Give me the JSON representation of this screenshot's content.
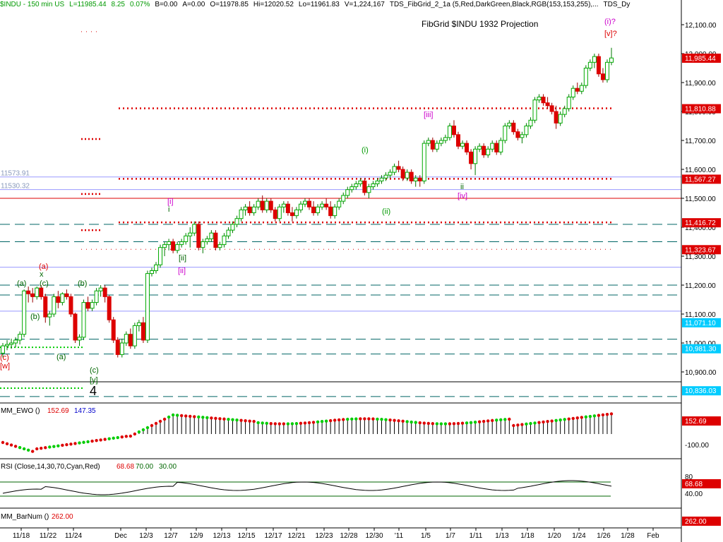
{
  "header": {
    "symbol": "$INDU - 150 min  US",
    "last": "L=11985.44",
    "change": "8.25",
    "pct": "0.07%",
    "bid": "B=0.00",
    "ask": "A=0.00",
    "open": "O=11978.85",
    "high": "Hi=12020.52",
    "low": "Lo=11961.83",
    "volume": "V=1,224,167",
    "study": "TDS_FibGrid_2_1a (5,Red,DarkGreen,Black,RGB(153,153,255),...",
    "study2": "TDS_Dy"
  },
  "chart_title": "FibGrid $INDU 1932 Projection",
  "colors": {
    "up": "#00cc00",
    "down": "#dd0000",
    "fib_red": "#ff0000",
    "fib_green": "#00cc00",
    "teal": "#006666",
    "lightblue": "#9999ff",
    "magenta": "#cc00cc",
    "darkgreen": "#006600"
  },
  "chart_data": {
    "type": "candlestick",
    "price_axis": {
      "min": 10780,
      "max": 12150,
      "ticks": [
        "12,100.00",
        "12,000.00",
        "11,900.00",
        "11,800.00",
        "11,700.00",
        "11,600.00",
        "11,500.00",
        "11,400.00",
        "11,300.00",
        "11,200.00",
        "11,100.00",
        "11,000.00",
        "10,900.00"
      ]
    },
    "tick_values": [
      12100,
      12000,
      11900,
      11800,
      11700,
      11600,
      11500,
      11400,
      11300,
      11200,
      11100,
      11000,
      10900
    ],
    "x_labels": [
      "11/18",
      "11/22",
      "11/24",
      "Dec",
      "12/3",
      "12/7",
      "12/9",
      "12/13",
      "12/15",
      "12/17",
      "12/21",
      "12/23",
      "12/28",
      "12/30",
      "'11",
      "1/5",
      "1/7",
      "1/11",
      "1/13",
      "1/18",
      "1/20",
      "1/24",
      "1/26",
      "1/28",
      "Feb"
    ],
    "price_tags": [
      {
        "text": "11,985.44",
        "value": 11985.44,
        "color": "#dd0000"
      },
      {
        "text": "11,810.88",
        "value": 11810.88,
        "color": "#dd0000"
      },
      {
        "text": "11,567.27",
        "value": 11567.27,
        "color": "#dd0000"
      },
      {
        "text": "11,416.72",
        "value": 11416.72,
        "color": "#dd0000"
      },
      {
        "text": "11,323.67",
        "value": 11323.67,
        "color": "#dd0000"
      },
      {
        "text": "11,071.10",
        "value": 11071.1,
        "color": "#00ccff"
      },
      {
        "text": "10,981.30",
        "value": 10981.3,
        "color": "#00ccff"
      },
      {
        "text": "10,836.03",
        "value": 10836.03,
        "color": "#00ccff"
      }
    ],
    "level_labels": [
      {
        "text": "11573.91",
        "value": 11573.91
      },
      {
        "text": "11530.32",
        "value": 11530.32
      }
    ],
    "levels": [
      {
        "value": 11810.88,
        "style": "reddot",
        "x0": 168
      },
      {
        "value": 11567.27,
        "style": "reddot",
        "x0": 168
      },
      {
        "value": 11416.72,
        "style": "reddot",
        "x0": 168
      },
      {
        "value": 11573.91,
        "style": "lightblue",
        "x0": 0
      },
      {
        "value": 11530.32,
        "style": "lightblue",
        "x0": 0
      },
      {
        "value": 11500,
        "style": "red",
        "x0": 0
      },
      {
        "value": 11410,
        "style": "tealdash",
        "x0": 0
      },
      {
        "value": 11350,
        "style": "tealdash",
        "x0": 0
      },
      {
        "value": 11323.67,
        "style": "pinkdot",
        "x0": 115
      },
      {
        "value": 11262,
        "style": "lightblue",
        "x0": 0
      },
      {
        "value": 11200,
        "style": "tealdash",
        "x0": 0
      },
      {
        "value": 11166,
        "style": "tealdash",
        "x0": 0
      },
      {
        "value": 11110,
        "style": "lightblue",
        "x0": 0
      },
      {
        "value": 11013,
        "style": "tealdash",
        "x0": 0
      },
      {
        "value": 10962,
        "style": "tealdash",
        "x0": 0
      },
      {
        "value": 10866,
        "style": "black",
        "x0": 0
      },
      {
        "value": 10815,
        "style": "tealdash",
        "x0": 0
      },
      {
        "value": 12076,
        "style": "pinkdot_short",
        "x0": 115
      },
      {
        "value": 11705,
        "style": "reddot_short",
        "x0": 115
      },
      {
        "value": 11515,
        "style": "reddot_short",
        "x0": 115
      },
      {
        "value": 11390,
        "style": "reddot_short",
        "x0": 115
      },
      {
        "value": 10985,
        "style": "greendot_short",
        "x0": 0
      },
      {
        "value": 10844,
        "style": "greendot_short",
        "x0": 0
      }
    ],
    "candles": [
      [
        10965,
        11000,
        10950,
        10990
      ],
      [
        10990,
        11010,
        10975,
        10995
      ],
      [
        10995,
        11015,
        10980,
        11000
      ],
      [
        11000,
        11020,
        10985,
        11010
      ],
      [
        11010,
        11040,
        10995,
        11030
      ],
      [
        11030,
        11185,
        11020,
        11180
      ],
      [
        11180,
        11195,
        11140,
        11170
      ],
      [
        11170,
        11190,
        11140,
        11160
      ],
      [
        11160,
        11195,
        11150,
        11190
      ],
      [
        11190,
        11200,
        11150,
        11160
      ],
      [
        11160,
        11170,
        11070,
        11090
      ],
      [
        11090,
        11110,
        11060,
        11100
      ],
      [
        11100,
        11170,
        11090,
        11160
      ],
      [
        11160,
        11180,
        11120,
        11140
      ],
      [
        11140,
        11175,
        11130,
        11170
      ],
      [
        11170,
        11185,
        11150,
        11160
      ],
      [
        11160,
        11170,
        11090,
        11100
      ],
      [
        11100,
        11105,
        11000,
        11010
      ],
      [
        11010,
        11030,
        10990,
        11020
      ],
      [
        11020,
        11150,
        11010,
        11140
      ],
      [
        11140,
        11160,
        11110,
        11120
      ],
      [
        11120,
        11150,
        11110,
        11140
      ],
      [
        11140,
        11190,
        11130,
        11180
      ],
      [
        11180,
        11200,
        11160,
        11190
      ],
      [
        11190,
        11200,
        11140,
        11160
      ],
      [
        11160,
        11165,
        11070,
        11080
      ],
      [
        11080,
        11090,
        11000,
        11010
      ],
      [
        11010,
        11020,
        10950,
        10960
      ],
      [
        10960,
        11015,
        10950,
        11000
      ],
      [
        11000,
        11040,
        10990,
        11030
      ],
      [
        11030,
        11050,
        10980,
        10990
      ],
      [
        10990,
        11070,
        10980,
        11060
      ],
      [
        11060,
        11080,
        11040,
        11070
      ],
      [
        11070,
        11090,
        11000,
        11010
      ],
      [
        11010,
        11250,
        11000,
        11240
      ],
      [
        11240,
        11260,
        11230,
        11250
      ],
      [
        11250,
        11280,
        11240,
        11270
      ],
      [
        11270,
        11340,
        11260,
        11330
      ],
      [
        11330,
        11350,
        11300,
        11340
      ],
      [
        11340,
        11360,
        11320,
        11350
      ],
      [
        11350,
        11360,
        11310,
        11320
      ],
      [
        11320,
        11350,
        11310,
        11340
      ],
      [
        11340,
        11360,
        11330,
        11350
      ],
      [
        11350,
        11380,
        11340,
        11370
      ],
      [
        11370,
        11400,
        11330,
        11380
      ],
      [
        11380,
        11420,
        11370,
        11410
      ],
      [
        11410,
        11420,
        11320,
        11330
      ],
      [
        11330,
        11360,
        11310,
        11350
      ],
      [
        11350,
        11370,
        11340,
        11360
      ],
      [
        11360,
        11390,
        11350,
        11380
      ],
      [
        11380,
        11390,
        11320,
        11330
      ],
      [
        11330,
        11350,
        11320,
        11340
      ],
      [
        11340,
        11380,
        11330,
        11370
      ],
      [
        11370,
        11400,
        11360,
        11390
      ],
      [
        11390,
        11420,
        11380,
        11410
      ],
      [
        11410,
        11440,
        11400,
        11430
      ],
      [
        11430,
        11470,
        11420,
        11460
      ],
      [
        11460,
        11480,
        11440,
        11470
      ],
      [
        11470,
        11490,
        11440,
        11450
      ],
      [
        11450,
        11480,
        11440,
        11470
      ],
      [
        11470,
        11500,
        11460,
        11490
      ],
      [
        11490,
        11510,
        11450,
        11460
      ],
      [
        11460,
        11500,
        11450,
        11490
      ],
      [
        11490,
        11500,
        11450,
        11460
      ],
      [
        11460,
        11470,
        11420,
        11430
      ],
      [
        11430,
        11480,
        11420,
        11470
      ],
      [
        11470,
        11490,
        11450,
        11480
      ],
      [
        11480,
        11490,
        11440,
        11450
      ],
      [
        11450,
        11470,
        11420,
        11440
      ],
      [
        11440,
        11470,
        11430,
        11460
      ],
      [
        11460,
        11490,
        11450,
        11480
      ],
      [
        11480,
        11500,
        11470,
        11490
      ],
      [
        11490,
        11500,
        11460,
        11470
      ],
      [
        11470,
        11490,
        11440,
        11450
      ],
      [
        11450,
        11480,
        11440,
        11470
      ],
      [
        11470,
        11490,
        11460,
        11480
      ],
      [
        11480,
        11500,
        11460,
        11470
      ],
      [
        11470,
        11490,
        11430,
        11440
      ],
      [
        11440,
        11480,
        11430,
        11470
      ],
      [
        11470,
        11500,
        11460,
        11490
      ],
      [
        11490,
        11520,
        11480,
        11510
      ],
      [
        11510,
        11540,
        11500,
        11530
      ],
      [
        11530,
        11550,
        11520,
        11540
      ],
      [
        11540,
        11560,
        11530,
        11550
      ],
      [
        11550,
        11570,
        11540,
        11560
      ],
      [
        11560,
        11570,
        11510,
        11520
      ],
      [
        11520,
        11550,
        11500,
        11540
      ],
      [
        11540,
        11560,
        11530,
        11550
      ],
      [
        11550,
        11570,
        11540,
        11560
      ],
      [
        11560,
        11580,
        11550,
        11570
      ],
      [
        11570,
        11590,
        11560,
        11580
      ],
      [
        11580,
        11600,
        11570,
        11590
      ],
      [
        11590,
        11620,
        11580,
        11610
      ],
      [
        11610,
        11630,
        11590,
        11600
      ],
      [
        11600,
        11610,
        11560,
        11570
      ],
      [
        11570,
        11600,
        11560,
        11590
      ],
      [
        11590,
        11600,
        11550,
        11560
      ],
      [
        11560,
        11580,
        11540,
        11570
      ],
      [
        11570,
        11580,
        11540,
        11560
      ],
      [
        11560,
        11700,
        11550,
        11690
      ],
      [
        11690,
        11710,
        11680,
        11700
      ],
      [
        11700,
        11710,
        11660,
        11670
      ],
      [
        11670,
        11700,
        11660,
        11690
      ],
      [
        11690,
        11710,
        11680,
        11700
      ],
      [
        11700,
        11720,
        11690,
        11710
      ],
      [
        11710,
        11760,
        11700,
        11750
      ],
      [
        11750,
        11770,
        11710,
        11720
      ],
      [
        11720,
        11730,
        11670,
        11680
      ],
      [
        11680,
        11700,
        11670,
        11690
      ],
      [
        11690,
        11700,
        11650,
        11660
      ],
      [
        11660,
        11670,
        11600,
        11620
      ],
      [
        11620,
        11680,
        11580,
        11670
      ],
      [
        11670,
        11690,
        11660,
        11680
      ],
      [
        11680,
        11690,
        11640,
        11650
      ],
      [
        11650,
        11680,
        11640,
        11670
      ],
      [
        11670,
        11700,
        11660,
        11690
      ],
      [
        11690,
        11700,
        11650,
        11660
      ],
      [
        11660,
        11710,
        11650,
        11700
      ],
      [
        11700,
        11760,
        11690,
        11750
      ],
      [
        11750,
        11770,
        11740,
        11760
      ],
      [
        11760,
        11770,
        11720,
        11730
      ],
      [
        11730,
        11740,
        11700,
        11710
      ],
      [
        11710,
        11730,
        11690,
        11720
      ],
      [
        11720,
        11760,
        11710,
        11750
      ],
      [
        11750,
        11780,
        11740,
        11770
      ],
      [
        11770,
        11850,
        11760,
        11840
      ],
      [
        11840,
        11860,
        11830,
        11850
      ],
      [
        11850,
        11860,
        11820,
        11830
      ],
      [
        11830,
        11850,
        11810,
        11820
      ],
      [
        11820,
        11830,
        11790,
        11800
      ],
      [
        11800,
        11820,
        11740,
        11760
      ],
      [
        11760,
        11800,
        11750,
        11790
      ],
      [
        11790,
        11820,
        11780,
        11810
      ],
      [
        11810,
        11860,
        11800,
        11850
      ],
      [
        11850,
        11890,
        11840,
        11880
      ],
      [
        11880,
        11900,
        11860,
        11870
      ],
      [
        11870,
        11900,
        11860,
        11890
      ],
      [
        11890,
        11960,
        11880,
        11950
      ],
      [
        11950,
        11980,
        11940,
        11970
      ],
      [
        11970,
        12000,
        11950,
        11990
      ],
      [
        11990,
        12000,
        11920,
        11930
      ],
      [
        11930,
        11950,
        11900,
        11910
      ],
      [
        11910,
        11980,
        11900,
        11970
      ],
      [
        11970,
        12020,
        11960,
        11985
      ]
    ],
    "ewo": {
      "label": "MM_EWO ()",
      "value1": "152.69",
      "value2": "147.35",
      "tag": "152.69",
      "tick": "-100.00"
    },
    "rsi": {
      "label": "RSI (Close,14,30,70,Cyan,Red)",
      "value": "68.68",
      "upper": "70.00",
      "lower": "30.00",
      "tag": "68.68",
      "ticks": [
        "80",
        "40.00"
      ]
    },
    "barnum": {
      "label": "MM_BarNum ()",
      "value": "262.00",
      "tag": "262.00"
    },
    "wave_labels": [
      {
        "text": "(i)?",
        "color": "#cc00cc"
      },
      {
        "text": "[v]?",
        "color": "#dd0000"
      },
      {
        "text": "[iii]",
        "color": "#cc00cc"
      },
      {
        "text": "(i)",
        "color": "#009900"
      },
      {
        "text": "ii",
        "color": "#006600"
      },
      {
        "text": "[iv]",
        "color": "#cc00cc"
      },
      {
        "text": "(ii)",
        "color": "#009900"
      },
      {
        "text": "[i]",
        "color": "#cc00cc"
      },
      {
        "text": "i",
        "color": "#006600"
      },
      {
        "text": "[ii]",
        "color": "#006600"
      },
      {
        "text": "[ii]",
        "color": "#cc00cc"
      },
      {
        "text": "(a)",
        "color": "#dd0000"
      },
      {
        "text": "x",
        "color": "#006600"
      },
      {
        "text": "(c)",
        "color": "#006600"
      },
      {
        "text": "(a)",
        "color": "#006600"
      },
      {
        "text": "(b)",
        "color": "#006600"
      },
      {
        "text": "(b)",
        "color": "#006600"
      },
      {
        "text": "(a)",
        "color": "#006600"
      },
      {
        "text": "(c)",
        "color": "#dd0000"
      },
      {
        "text": "[w]",
        "color": "#dd0000"
      },
      {
        "text": "(c)",
        "color": "#006600"
      },
      {
        "text": "[y]",
        "color": "#006600"
      },
      {
        "text": "4",
        "color": "#000000"
      }
    ]
  }
}
